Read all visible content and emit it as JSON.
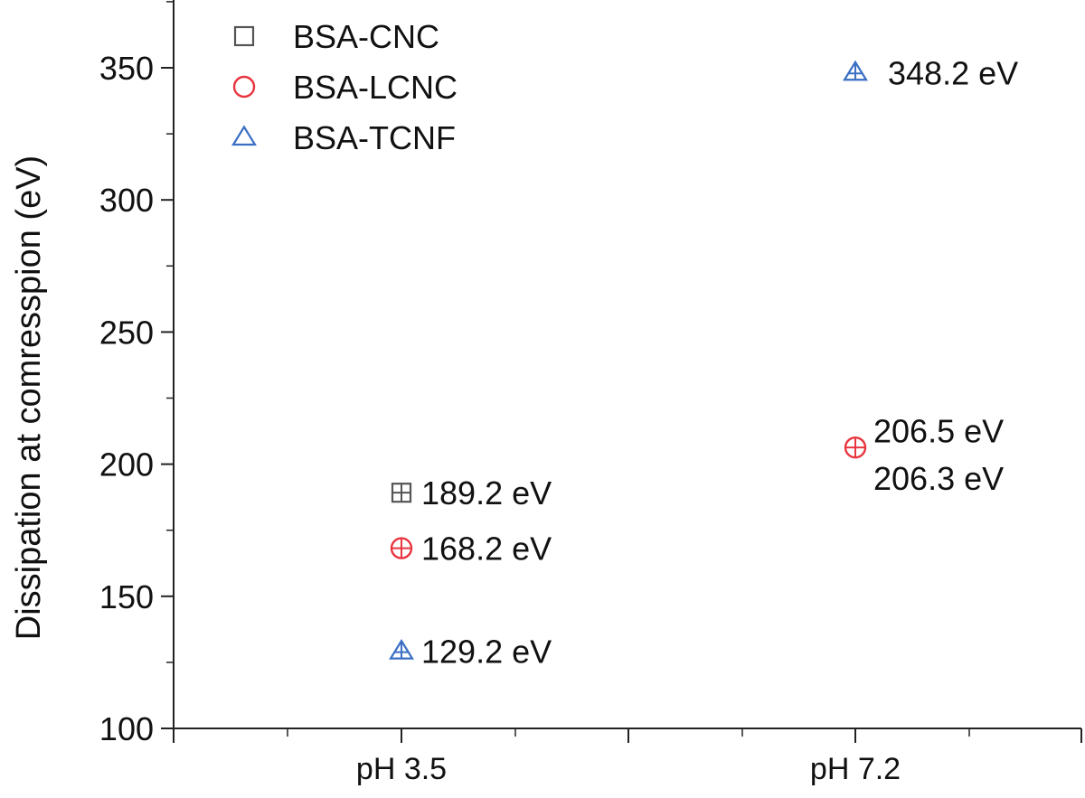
{
  "chart_data": {
    "type": "scatter",
    "title": "",
    "xlabel": "",
    "ylabel": "Dissipation at comresspion (eV)",
    "categories": [
      "pH 3.5",
      "pH 7.2"
    ],
    "ylim": [
      100,
      370
    ],
    "yticks": [
      "100",
      "150",
      "200",
      "250",
      "300",
      "350"
    ],
    "grid": false,
    "legend_position": "top-left",
    "series": [
      {
        "name": "BSA-CNC",
        "marker": "square",
        "color": "#555555",
        "points": [
          {
            "category": "pH 3.5",
            "value": 189.2,
            "label": "189.2 eV"
          }
        ]
      },
      {
        "name": "BSA-LCNC",
        "marker": "circle",
        "color": "#e8353f",
        "points": [
          {
            "category": "pH 3.5",
            "value": 168.2,
            "label": "168.2 eV"
          },
          {
            "category": "pH 7.2",
            "value": 206.3,
            "label": "206.3 eV"
          }
        ]
      },
      {
        "name": "BSA-TCNF",
        "marker": "triangle",
        "color": "#3a6fc4",
        "points": [
          {
            "category": "pH 3.5",
            "value": 129.2,
            "label": "129.2 eV"
          },
          {
            "category": "pH 7.2",
            "value": 348.2,
            "label": "348.2 eV"
          }
        ]
      }
    ],
    "extra_labels": [
      {
        "category": "pH 7.2",
        "value": 206.5,
        "label": "206.5 eV"
      }
    ]
  }
}
